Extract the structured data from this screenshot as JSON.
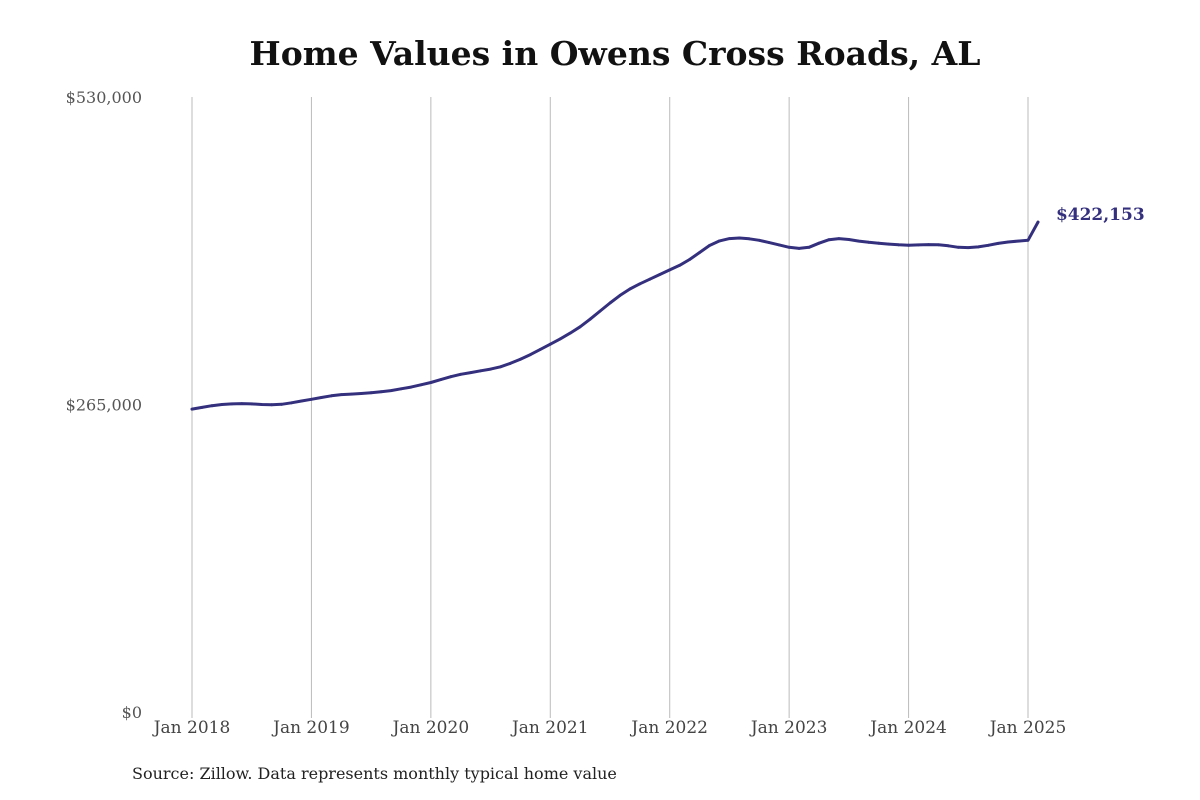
{
  "title": "Home Values in Owens Cross Roads, AL",
  "source": "Source: Zillow. Data represents monthly typical home value",
  "colors": {
    "line": "#34307e",
    "grid": "#bbbbbb",
    "title": "#111111"
  },
  "chart_data": {
    "type": "line",
    "title": "Home Values in Owens Cross Roads, AL",
    "xlabel": "",
    "ylabel": "",
    "ylim": [
      0,
      530000
    ],
    "y_ticks": [
      0,
      265000,
      530000
    ],
    "y_tick_labels": [
      "$0",
      "$265,000",
      "$530,000"
    ],
    "x_ticks": [
      "2018-01",
      "2019-01",
      "2020-01",
      "2021-01",
      "2022-01",
      "2023-01",
      "2024-01",
      "2025-01"
    ],
    "x_tick_labels": [
      "Jan 2018",
      "Jan 2019",
      "Jan 2020",
      "Jan 2021",
      "Jan 2022",
      "Jan 2023",
      "Jan 2024",
      "Jan 2025"
    ],
    "grid": "vertical",
    "last_value_label": "$422,153",
    "series": [
      {
        "x": [
          "2018-01",
          "2018-02",
          "2018-03",
          "2018-04",
          "2018-05",
          "2018-06",
          "2018-07",
          "2018-08",
          "2018-09",
          "2018-10",
          "2018-11",
          "2018-12",
          "2019-01",
          "2019-02",
          "2019-03",
          "2019-04",
          "2019-05",
          "2019-06",
          "2019-07",
          "2019-08",
          "2019-09",
          "2019-10",
          "2019-11",
          "2019-12",
          "2020-01",
          "2020-02",
          "2020-03",
          "2020-04",
          "2020-05",
          "2020-06",
          "2020-07",
          "2020-08",
          "2020-09",
          "2020-10",
          "2020-11",
          "2020-12",
          "2021-01",
          "2021-02",
          "2021-03",
          "2021-04",
          "2021-05",
          "2021-06",
          "2021-07",
          "2021-08",
          "2021-09",
          "2021-10",
          "2021-11",
          "2021-12",
          "2022-01",
          "2022-02",
          "2022-03",
          "2022-04",
          "2022-05",
          "2022-06",
          "2022-07",
          "2022-08",
          "2022-09",
          "2022-10",
          "2022-11",
          "2022-12",
          "2023-01",
          "2023-02",
          "2023-03",
          "2023-04",
          "2023-05",
          "2023-06",
          "2023-07",
          "2023-08",
          "2023-09",
          "2023-10",
          "2023-11",
          "2023-12",
          "2024-01",
          "2024-02",
          "2024-03",
          "2024-04",
          "2024-05",
          "2024-06",
          "2024-07",
          "2024-08",
          "2024-09",
          "2024-10",
          "2024-11",
          "2024-12",
          "2025-01",
          "2025-02"
        ],
        "values": [
          261000,
          262500,
          264000,
          265000,
          265500,
          265800,
          265500,
          265000,
          264800,
          265200,
          266500,
          268000,
          269500,
          271000,
          272500,
          273500,
          274000,
          274500,
          275200,
          276000,
          277000,
          278500,
          280000,
          282000,
          284000,
          286500,
          289000,
          291000,
          292500,
          294000,
          295500,
          297500,
          300500,
          304000,
          308000,
          312500,
          317000,
          321500,
          326500,
          332000,
          338500,
          345500,
          352500,
          359000,
          364500,
          369000,
          373000,
          377000,
          381000,
          385000,
          390000,
          396000,
          402000,
          406000,
          408000,
          408500,
          407800,
          406500,
          404500,
          402500,
          400500,
          399500,
          400500,
          404000,
          407000,
          408000,
          407200,
          405800,
          404800,
          404000,
          403200,
          402600,
          402300,
          402500,
          402800,
          402600,
          401800,
          400500,
          400200,
          400800,
          402200,
          403800,
          405000,
          405800,
          406500,
          422153
        ]
      }
    ]
  }
}
